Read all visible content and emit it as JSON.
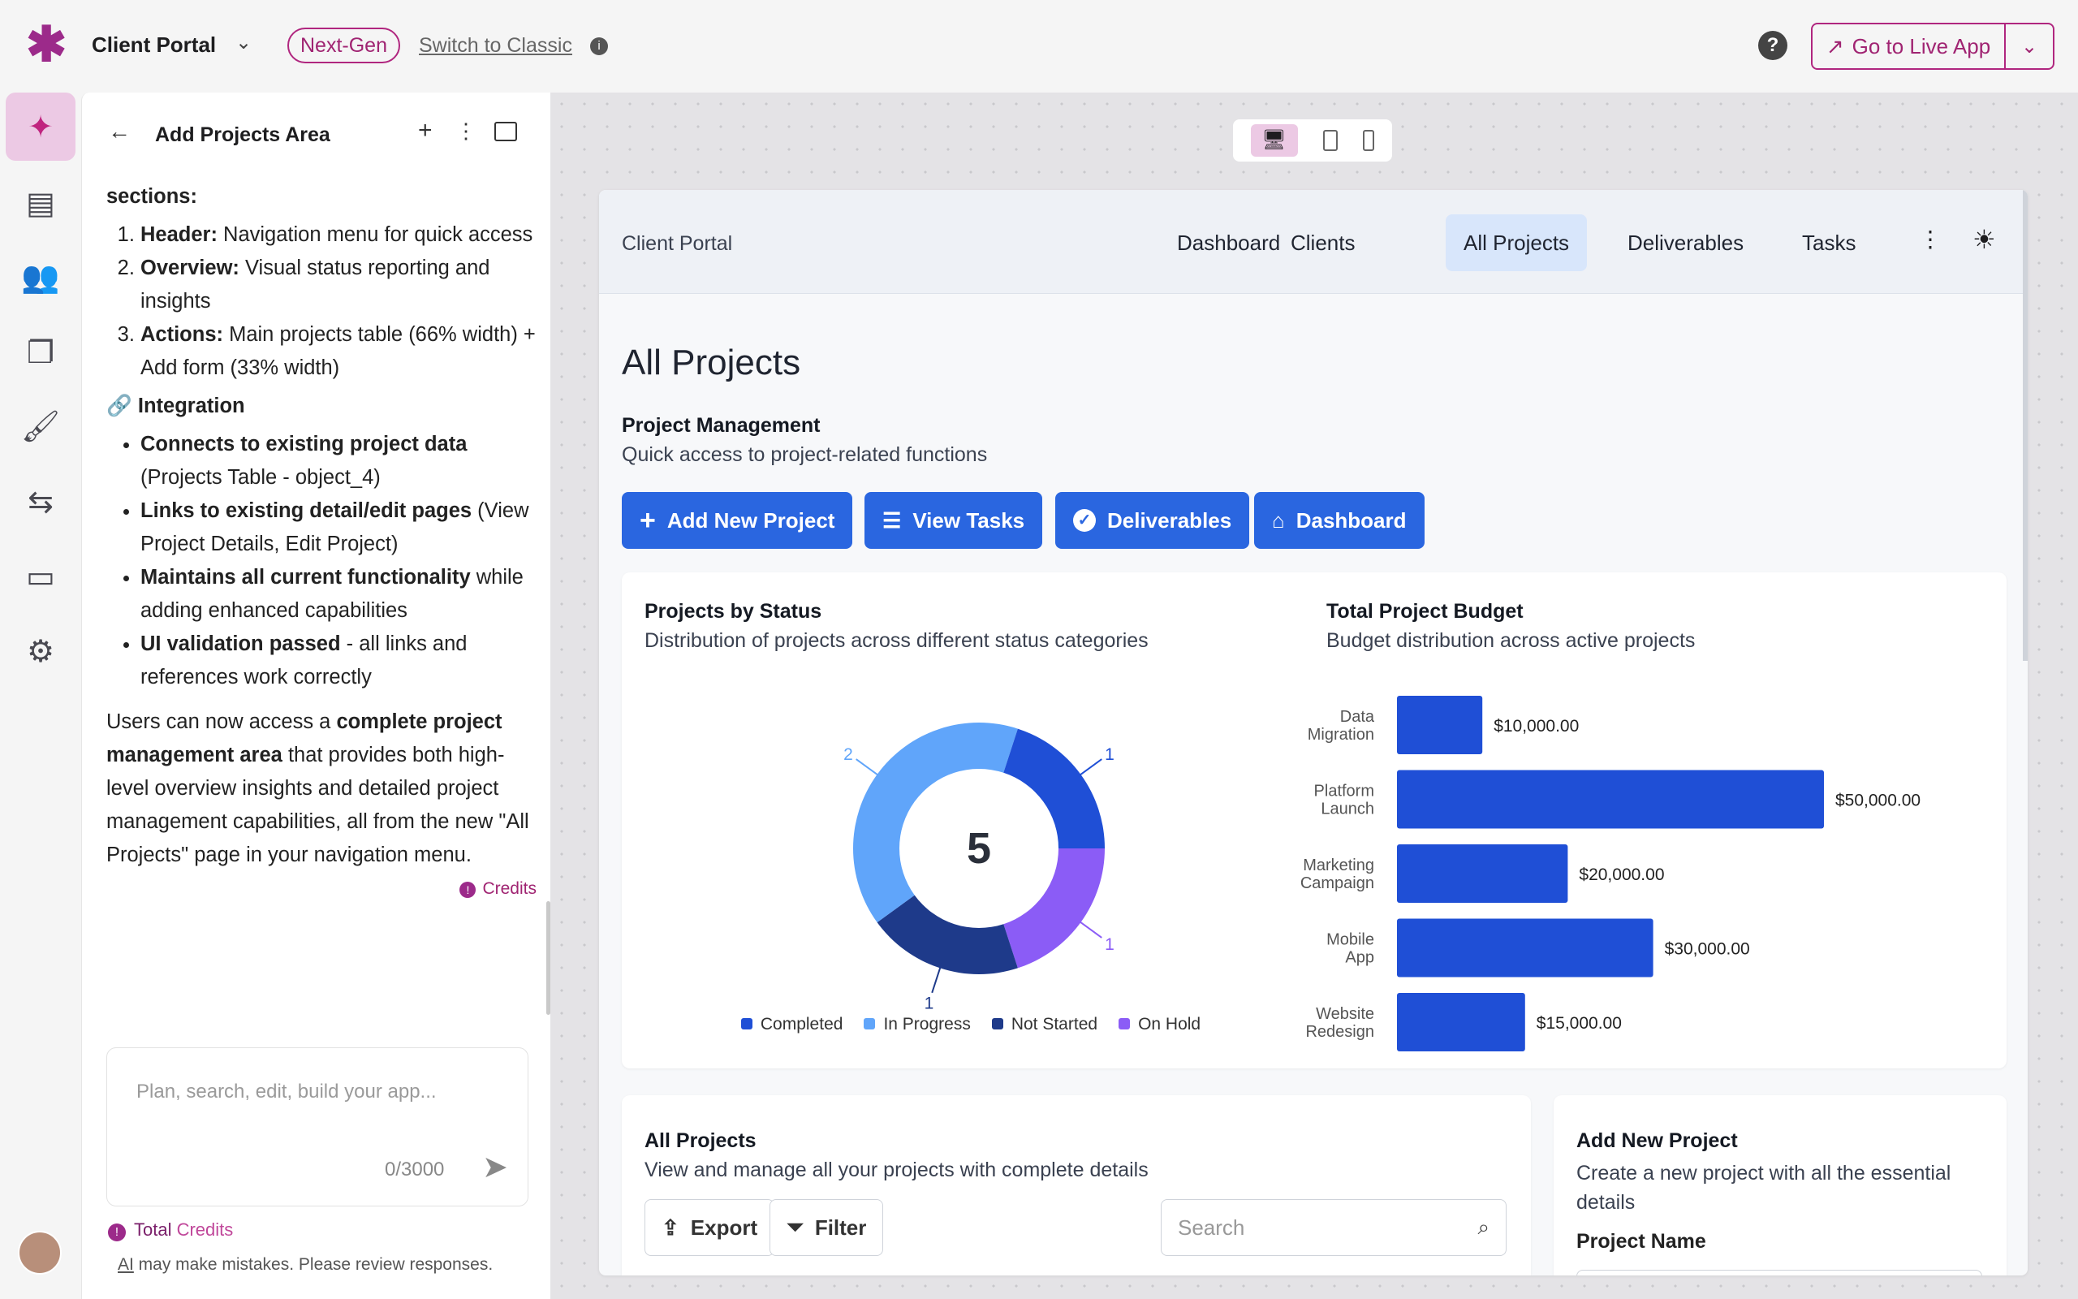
{
  "topbar": {
    "app_name": "Client Portal",
    "next_gen": "Next-Gen",
    "switch_classic": "Switch to Classic",
    "live_app": "Go to Live App"
  },
  "chat": {
    "title": "Add Projects Area",
    "sections_label": "sections:",
    "sections": [
      {
        "bold": "Header:",
        "text": " Navigation menu for quick access"
      },
      {
        "bold": "Overview:",
        "text": " Visual status reporting and insights"
      },
      {
        "bold": "Actions:",
        "text": " Main projects table (66% width) + Add form (33% width)"
      }
    ],
    "integration_heading": "Integration",
    "integration": [
      {
        "bold": "Connects to existing project data",
        "text": " (Projects Table - object_4)"
      },
      {
        "bold": "Links to existing detail/edit pages",
        "text": " (View Project Details, Edit Project)"
      },
      {
        "bold": "Maintains all current functionality",
        "text": " while adding enhanced capabilities"
      },
      {
        "bold": "UI validation passed",
        "text": " - all links and references work correctly"
      }
    ],
    "summary_pre": "Users can now access a ",
    "summary_bold": "complete project management area",
    "summary_post": " that provides both high-level overview insights and detailed project management capabilities, all from the new \"All Projects\" page in your navigation menu.",
    "credits": "Credits",
    "input_placeholder": "Plan, search, edit, build your app...",
    "char_count": "0/3000",
    "total_credits_a": "Total ",
    "total_credits_b": "Credits",
    "disclaimer_ai": "AI",
    "disclaimer": " may make mistakes. Please review responses."
  },
  "preview": {
    "brand": "Client Portal",
    "nav": [
      "Dashboard",
      "Clients",
      "All Projects",
      "Deliverables",
      "Tasks"
    ],
    "page_title": "All Projects",
    "section_title": "Project Management",
    "section_sub": "Quick access to project-related functions",
    "buttons": [
      "Add New Project",
      "View Tasks",
      "Deliverables",
      "Dashboard"
    ],
    "table_card": {
      "title": "All Projects",
      "sub": "View and manage all your projects with complete details",
      "export": "Export",
      "filter": "Filter",
      "search_placeholder": "Search"
    },
    "form_card": {
      "title": "Add New Project",
      "sub": "Create a new project with all the essential details",
      "field_label": "Project Name"
    }
  },
  "chart_data": [
    {
      "type": "pie",
      "title": "Projects by Status",
      "subtitle": "Distribution of projects across different status categories",
      "center_label": "5",
      "categories": [
        "Completed",
        "In Progress",
        "Not Started",
        "On Hold"
      ],
      "values": [
        1,
        2,
        1,
        1
      ],
      "colors": [
        "#1f4fd6",
        "#60a5fa",
        "#1e3a8a",
        "#8b5cf6"
      ],
      "legend": "bottom"
    },
    {
      "type": "bar",
      "orientation": "horizontal",
      "title": "Total Project Budget",
      "subtitle": "Budget distribution across active projects",
      "categories": [
        [
          "Data",
          "Migration"
        ],
        [
          "Platform",
          "Launch"
        ],
        [
          "Marketing",
          "Campaign"
        ],
        [
          "Mobile",
          "App"
        ],
        [
          "Website",
          "Redesign"
        ]
      ],
      "values": [
        10000,
        50000,
        20000,
        30000,
        15000
      ],
      "labels": [
        "$10,000.00",
        "$50,000.00",
        "$20,000.00",
        "$30,000.00",
        "$15,000.00"
      ],
      "color": "#1f4fd6"
    }
  ]
}
